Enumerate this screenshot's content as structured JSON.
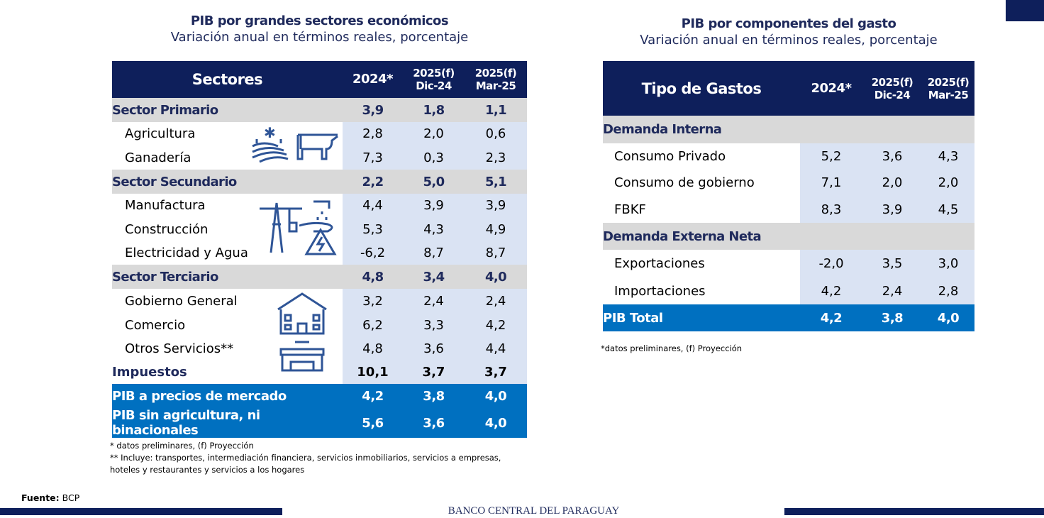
{
  "left": {
    "title": "PIB por grandes sectores económicos",
    "subtitle": "Variación anual en términos reales, porcentaje",
    "headers": {
      "label": "Sectores",
      "c1": "2024*",
      "c2a": "2025(f)",
      "c2b": "Dic-24",
      "c3a": "2025(f)",
      "c3b": "Mar-25"
    },
    "rows": [
      {
        "label": "Sector Primario",
        "v": [
          "3,9",
          "1,8",
          "1,1"
        ]
      },
      {
        "label": "Agricultura",
        "v": [
          "2,8",
          "2,0",
          "0,6"
        ]
      },
      {
        "label": "Ganadería",
        "v": [
          "7,3",
          "0,3",
          "2,3"
        ]
      },
      {
        "label": "Sector Secundario",
        "v": [
          "2,2",
          "5,0",
          "5,1"
        ]
      },
      {
        "label": "Manufactura",
        "v": [
          "4,4",
          "3,9",
          "3,9"
        ]
      },
      {
        "label": "Construcción",
        "v": [
          "5,3",
          "4,3",
          "4,9"
        ]
      },
      {
        "label": "Electricidad y Agua",
        "v": [
          "-6,2",
          "8,7",
          "8,7"
        ]
      },
      {
        "label": "Sector Terciario",
        "v": [
          "4,8",
          "3,4",
          "4,0"
        ]
      },
      {
        "label": "Gobierno General",
        "v": [
          "3,2",
          "2,4",
          "2,4"
        ]
      },
      {
        "label": "Comercio",
        "v": [
          "6,2",
          "3,3",
          "4,2"
        ]
      },
      {
        "label": "Otros Servicios**",
        "v": [
          "4,8",
          "3,6",
          "4,4"
        ]
      },
      {
        "label": "Impuestos",
        "v": [
          "10,1",
          "3,7",
          "3,7"
        ]
      },
      {
        "label": "PIB a precios de mercado",
        "v": [
          "4,2",
          "3,8",
          "4,0"
        ]
      },
      {
        "label": "PIB sin agricultura, ni binacionales",
        "v": [
          "5,6",
          "3,6",
          "4,0"
        ]
      }
    ],
    "notes": [
      "* datos preliminares, (f) Proyección",
      "** Incluye: transportes, intermediación financiera, servicios inmobiliarios, servicios a empresas,",
      "hoteles y restaurantes y servicios a los hogares"
    ]
  },
  "right": {
    "title": "PIB por componentes del gasto",
    "subtitle": "Variación anual en términos reales, porcentaje",
    "headers": {
      "label": "Tipo de Gastos",
      "c1": "2024*",
      "c2a": "2025(f)",
      "c2b": "Dic-24",
      "c3a": "2025(f)",
      "c3b": "Mar-25"
    },
    "rows": [
      {
        "label": "Demanda Interna"
      },
      {
        "label": "Consumo Privado",
        "v": [
          "5,2",
          "3,6",
          "4,3"
        ]
      },
      {
        "label": "Consumo de gobierno",
        "v": [
          "7,1",
          "2,0",
          "2,0"
        ]
      },
      {
        "label": "FBKF",
        "v": [
          "8,3",
          "3,9",
          "4,5"
        ]
      },
      {
        "label": "Demanda Externa Neta"
      },
      {
        "label": "Exportaciones",
        "v": [
          "-2,0",
          "3,5",
          "3,0"
        ]
      },
      {
        "label": "Importaciones",
        "v": [
          "4,2",
          "2,4",
          "2,8"
        ]
      },
      {
        "label": "PIB Total",
        "v": [
          "4,2",
          "3,8",
          "4,0"
        ]
      }
    ],
    "note": "*datos preliminares, (f) Proyección"
  },
  "footer": {
    "source_label": "Fuente:",
    "source": "BCP",
    "bank": "BANCO CENTRAL DEL PARAGUAY"
  },
  "colors": {
    "navy": "#0e1f5b",
    "blue": "#0070c0",
    "gray": "#d9d9d9",
    "lightblue": "#dae3f3"
  }
}
